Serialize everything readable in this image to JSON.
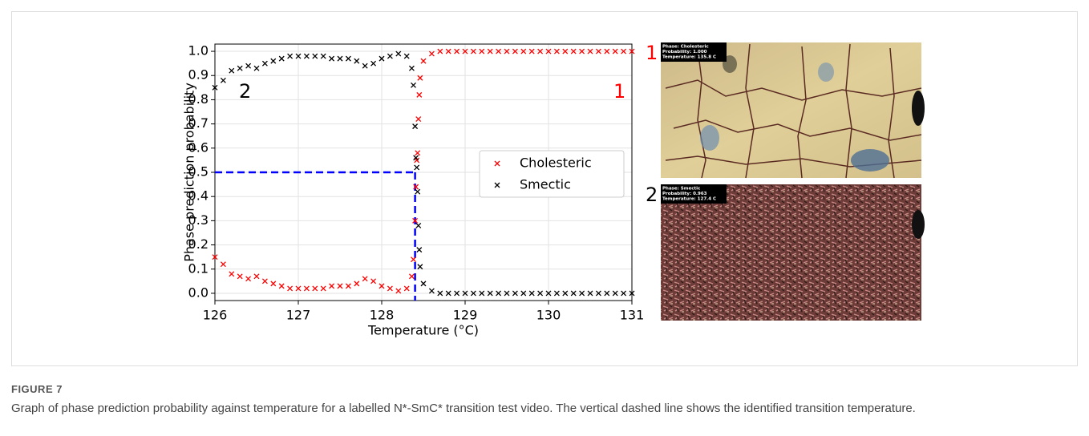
{
  "chart_data": {
    "type": "scatter",
    "ylabel": "Phase prediction probability",
    "xlabel": "Temperature (°C)",
    "xlim": [
      126,
      131
    ],
    "xticks": [
      126,
      127,
      128,
      129,
      130,
      131
    ],
    "ylim": [
      -0.03,
      1.03
    ],
    "yticks": [
      {
        "value": 0,
        "label": "0.0"
      },
      0.1,
      0.2,
      0.3,
      0.4,
      0.5,
      0.6,
      0.7,
      0.8,
      0.9,
      {
        "value": 1,
        "label": "1.0"
      }
    ],
    "grid": true,
    "legend": "right",
    "x": [
      126.0,
      126.1,
      126.2,
      126.3,
      126.4,
      126.5,
      126.6,
      126.7,
      126.8,
      126.9,
      127.0,
      127.1,
      127.2,
      127.3,
      127.4,
      127.5,
      127.6,
      127.7,
      127.8,
      127.9,
      128.0,
      128.1,
      128.2,
      128.3,
      128.36,
      128.38,
      128.4,
      128.41,
      128.42,
      128.43,
      128.44,
      128.45,
      128.46,
      128.5,
      128.6,
      128.7,
      128.8,
      128.9,
      129.0,
      129.1,
      129.2,
      129.3,
      129.4,
      129.5,
      129.6,
      129.7,
      129.8,
      129.9,
      130.0,
      130.1,
      130.2,
      130.3,
      130.4,
      130.5,
      130.6,
      130.7,
      130.8,
      130.9,
      131.0
    ],
    "series": [
      {
        "name": "Cholesteric",
        "color": "#ff0000",
        "values": [
          0.15,
          0.12,
          0.08,
          0.07,
          0.06,
          0.07,
          0.05,
          0.04,
          0.03,
          0.02,
          0.02,
          0.02,
          0.02,
          0.02,
          0.03,
          0.03,
          0.03,
          0.04,
          0.06,
          0.05,
          0.03,
          0.02,
          0.01,
          0.02,
          0.07,
          0.14,
          0.3,
          0.44,
          0.55,
          0.58,
          0.72,
          0.82,
          0.89,
          0.96,
          0.99,
          1,
          1,
          1,
          1,
          1,
          1,
          1,
          1,
          1,
          1,
          1,
          1,
          1,
          1,
          1,
          1,
          1,
          1,
          1,
          1,
          1,
          1,
          1,
          1
        ]
      },
      {
        "name": "Smectic",
        "color": "#000000",
        "values": [
          0.85,
          0.88,
          0.92,
          0.93,
          0.94,
          0.93,
          0.95,
          0.96,
          0.97,
          0.98,
          0.98,
          0.98,
          0.98,
          0.98,
          0.97,
          0.97,
          0.97,
          0.96,
          0.94,
          0.95,
          0.97,
          0.98,
          0.99,
          0.98,
          0.93,
          0.86,
          0.69,
          0.56,
          0.52,
          0.42,
          0.28,
          0.18,
          0.11,
          0.04,
          0.01,
          0,
          0,
          0,
          0,
          0,
          0,
          0,
          0,
          0,
          0,
          0,
          0,
          0,
          0,
          0,
          0,
          0,
          0,
          0,
          0,
          0,
          0,
          0,
          0
        ]
      }
    ],
    "transition": {
      "temperature": 128.4,
      "probability": 0.5,
      "color": "#0000ff"
    },
    "annotations": [
      {
        "text": "2",
        "color": "#000000"
      },
      {
        "text": "1",
        "color": "#ff0000"
      }
    ]
  },
  "panels": [
    {
      "label": "1",
      "label_color": "#ff0000",
      "lines": [
        "Phase: Cholesteric",
        "Probability: 1.000",
        "Temperature: 135.8 C"
      ]
    },
    {
      "label": "2",
      "label_color": "#000000",
      "lines": [
        "Phase: Smectic",
        "Probability: 0.963",
        "Temperature: 127.4 C"
      ]
    }
  ],
  "caption": {
    "label": "FIGURE 7",
    "text": "Graph of phase prediction probability against temperature for a labelled N*-SmC* transition test video. The vertical dashed line shows the identified transition temperature."
  }
}
